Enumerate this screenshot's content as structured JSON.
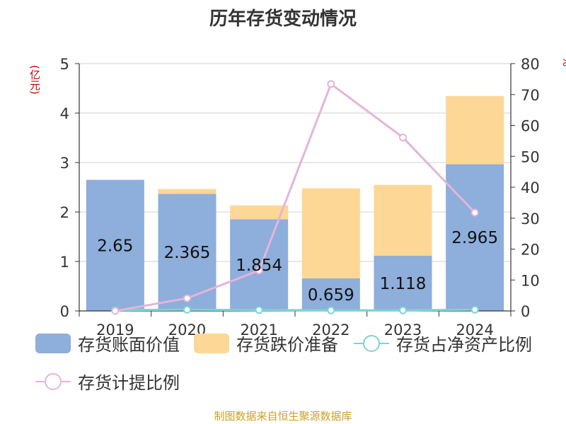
{
  "title": "历年存货变动情况",
  "left_unit": "(亿元)",
  "right_unit": "%",
  "source": "制图数据来自恒生聚源数据库",
  "colors": {
    "book_value": "#8eaedb",
    "impairment": "#fdd795",
    "ratio_net_assets": "#7fd3d3",
    "provision_ratio": "#e4b5d9"
  },
  "chart_data": {
    "type": "bar",
    "title": "历年存货变动情况",
    "categories": [
      "2019",
      "2020",
      "2021",
      "2022",
      "2023",
      "2024"
    ],
    "ylim_left": [
      0,
      5
    ],
    "yticks_left": [
      0,
      1,
      2,
      3,
      4,
      5
    ],
    "ylim_right": [
      0,
      80
    ],
    "yticks_right": [
      0,
      10,
      20,
      30,
      40,
      50,
      60,
      70,
      80
    ],
    "grid": true,
    "legend_position": "bottom",
    "series": [
      {
        "name": "存货账面价值",
        "kind": "bar",
        "axis": "left",
        "values": [
          2.65,
          2.365,
          1.854,
          0.659,
          1.118,
          2.965
        ],
        "labels": [
          "2.65",
          "2.365",
          "1.854",
          "0.659",
          "1.118",
          "2.965"
        ]
      },
      {
        "name": "存货跌价准备",
        "kind": "bar",
        "axis": "left",
        "values": [
          0.0,
          0.1,
          0.28,
          1.82,
          1.43,
          1.38
        ]
      },
      {
        "name": "存货占净资产比例",
        "kind": "line",
        "axis": "right",
        "values": [
          0.3,
          0.4,
          0.3,
          0.2,
          0.2,
          0.4
        ]
      },
      {
        "name": "存货计提比例",
        "kind": "line",
        "axis": "right",
        "values": [
          0.0,
          4.1,
          13.1,
          73.4,
          56.1,
          31.8
        ]
      }
    ]
  }
}
